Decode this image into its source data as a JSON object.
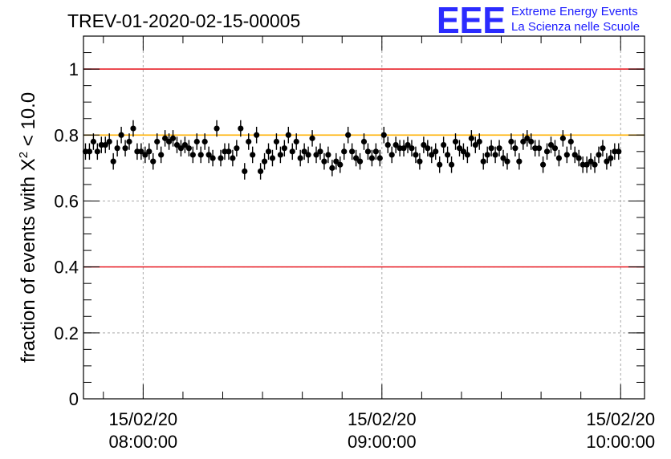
{
  "chart_data": {
    "type": "scatter",
    "title": "TREV-01-2020-02-15-00005",
    "logo": {
      "mark": "EEE",
      "line1": "Extreme Energy Events",
      "line2": "La Scienza nelle Scuole"
    },
    "ylabel": {
      "prefix": "fraction of events with ",
      "symbol": "X",
      "exponent": "2",
      "suffix": " < 10.0"
    },
    "ylim": [
      0,
      1.1
    ],
    "yticks": [
      {
        "value": 0,
        "label": "0"
      },
      {
        "value": 0.2,
        "label": "0.2"
      },
      {
        "value": 0.4,
        "label": "0.4"
      },
      {
        "value": 0.6,
        "label": "0.6"
      },
      {
        "value": 0.8,
        "label": "0.8"
      },
      {
        "value": 1.0,
        "label": "1"
      }
    ],
    "xlim_minutes": [
      -15,
      126
    ],
    "xticks": [
      {
        "minute": 0,
        "date": "15/02/20",
        "time": "08:00:00"
      },
      {
        "minute": 60,
        "date": "15/02/20",
        "time": "09:00:00"
      },
      {
        "minute": 120,
        "date": "15/02/20",
        "time": "10:00:00"
      }
    ],
    "reference_lines": [
      {
        "y": 1.0,
        "color": "#e8222a"
      },
      {
        "y": 0.4,
        "color": "#e8222a"
      },
      {
        "y": 0.8,
        "color": "#ffb000"
      }
    ],
    "grid": true,
    "marker_color": "#000000",
    "error": 0.025,
    "x_start_minute": -14.5,
    "x_step_minute": 1.0,
    "values": [
      0.75,
      0.75,
      0.78,
      0.75,
      0.77,
      0.77,
      0.78,
      0.72,
      0.76,
      0.8,
      0.76,
      0.78,
      0.82,
      0.75,
      0.75,
      0.74,
      0.75,
      0.72,
      0.78,
      0.74,
      0.79,
      0.78,
      0.79,
      0.77,
      0.76,
      0.77,
      0.76,
      0.74,
      0.78,
      0.74,
      0.78,
      0.74,
      0.73,
      0.82,
      0.73,
      0.75,
      0.75,
      0.73,
      0.76,
      0.82,
      0.69,
      0.78,
      0.74,
      0.8,
      0.69,
      0.72,
      0.75,
      0.73,
      0.78,
      0.74,
      0.76,
      0.8,
      0.75,
      0.78,
      0.73,
      0.75,
      0.74,
      0.79,
      0.74,
      0.75,
      0.72,
      0.74,
      0.7,
      0.72,
      0.71,
      0.75,
      0.8,
      0.75,
      0.73,
      0.72,
      0.78,
      0.75,
      0.73,
      0.75,
      0.73,
      0.8,
      0.77,
      0.74,
      0.77,
      0.76,
      0.76,
      0.77,
      0.76,
      0.74,
      0.72,
      0.77,
      0.76,
      0.74,
      0.75,
      0.71,
      0.77,
      0.74,
      0.71,
      0.78,
      0.76,
      0.75,
      0.74,
      0.79,
      0.77,
      0.78,
      0.72,
      0.74,
      0.76,
      0.74,
      0.76,
      0.73,
      0.72,
      0.78,
      0.76,
      0.72,
      0.78,
      0.79,
      0.78,
      0.76,
      0.76,
      0.71,
      0.75,
      0.77,
      0.76,
      0.73,
      0.79,
      0.74,
      0.78,
      0.74,
      0.73,
      0.71,
      0.71,
      0.72,
      0.71,
      0.74,
      0.76,
      0.72,
      0.73,
      0.75,
      0.75
    ]
  }
}
